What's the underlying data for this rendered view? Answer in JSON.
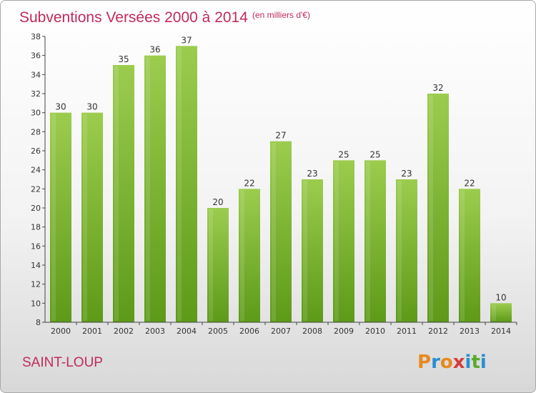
{
  "chart_data": {
    "type": "bar",
    "title": "Subventions Versées 2000 à 2014",
    "subtitle": "(en milliers d'€)",
    "categories": [
      "2000",
      "2001",
      "2002",
      "2003",
      "2004",
      "2005",
      "2006",
      "2007",
      "2008",
      "2009",
      "2010",
      "2011",
      "2012",
      "2013",
      "2014"
    ],
    "values": [
      30,
      30,
      35,
      36,
      37,
      20,
      22,
      27,
      23,
      25,
      25,
      23,
      32,
      22,
      10
    ],
    "ylim": [
      8,
      38
    ],
    "yticks": [
      8,
      10,
      12,
      14,
      16,
      18,
      20,
      22,
      24,
      26,
      28,
      30,
      32,
      34,
      36,
      38
    ],
    "xlabel": "",
    "ylabel": "",
    "grid": false,
    "bar_color_top": "#9ccc4e",
    "bar_color_bottom": "#5d9a18"
  },
  "footer": {
    "place": "SAINT-LOUP",
    "logo": "Proxiti",
    "logo_colors": [
      "#e8891e",
      "#2a8fd1",
      "#e8891e",
      "#d93a3a",
      "#2a8fd1",
      "#5aaa2a",
      "#2a8fd1"
    ]
  }
}
